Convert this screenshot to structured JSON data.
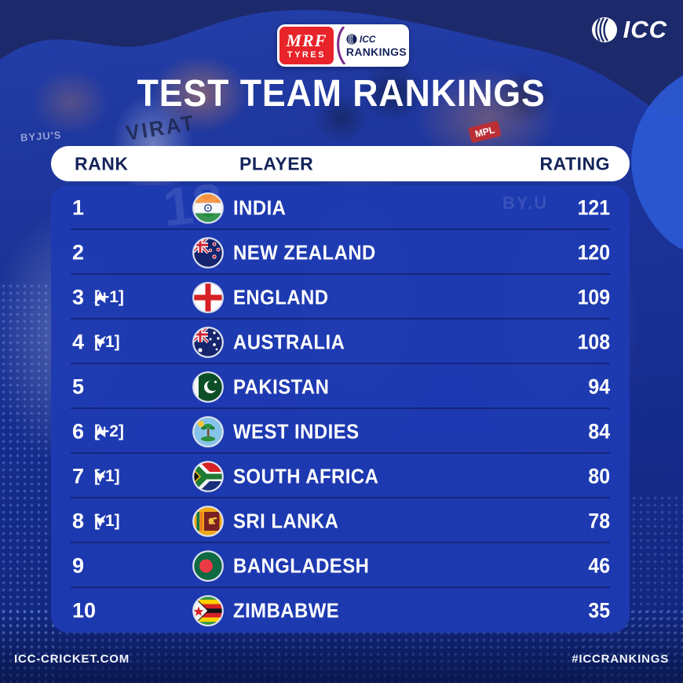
{
  "brand": {
    "icc_main_text": "ICC",
    "lockup": {
      "mrf_line1": "MRF",
      "mrf_line2": "TYRES",
      "icc_small": "ICC",
      "rankings_label": "RANKINGS"
    }
  },
  "title": "TEST TEAM RANKINGS",
  "table": {
    "headers": {
      "rank": "RANK",
      "player": "PLAYER",
      "rating": "RATING"
    },
    "rows": [
      {
        "rank": "1",
        "movement": null,
        "team": "INDIA",
        "flag": "india",
        "rating": "121"
      },
      {
        "rank": "2",
        "movement": null,
        "team": "NEW ZEALAND",
        "flag": "new-zealand",
        "rating": "120"
      },
      {
        "rank": "3",
        "movement": {
          "direction": "up",
          "label": "[+1]"
        },
        "team": "ENGLAND",
        "flag": "england",
        "rating": "109"
      },
      {
        "rank": "4",
        "movement": {
          "direction": "down",
          "label": "[-1]"
        },
        "team": "AUSTRALIA",
        "flag": "australia",
        "rating": "108"
      },
      {
        "rank": "5",
        "movement": null,
        "team": "PAKISTAN",
        "flag": "pakistan",
        "rating": "94"
      },
      {
        "rank": "6",
        "movement": {
          "direction": "up",
          "label": "[+2]"
        },
        "team": "WEST INDIES",
        "flag": "west-indies",
        "rating": "84"
      },
      {
        "rank": "7",
        "movement": {
          "direction": "down",
          "label": "[-1]"
        },
        "team": "SOUTH AFRICA",
        "flag": "south-africa",
        "rating": "80"
      },
      {
        "rank": "8",
        "movement": {
          "direction": "down",
          "label": "[-1]"
        },
        "team": "SRI LANKA",
        "flag": "sri-lanka",
        "rating": "78"
      },
      {
        "rank": "9",
        "movement": null,
        "team": "BANGLADESH",
        "flag": "bangladesh",
        "rating": "46"
      },
      {
        "rank": "10",
        "movement": null,
        "team": "ZIMBABWE",
        "flag": "zimbabwe",
        "rating": "35"
      }
    ]
  },
  "chart_data": {
    "type": "table",
    "title": "TEST TEAM RANKINGS",
    "columns": [
      "RANK",
      "PLAYER",
      "RATING"
    ],
    "rows": [
      {
        "rank": 1,
        "movement": "",
        "team": "INDIA",
        "rating": 121
      },
      {
        "rank": 2,
        "movement": "",
        "team": "NEW ZEALAND",
        "rating": 120
      },
      {
        "rank": 3,
        "movement": "+1",
        "team": "ENGLAND",
        "rating": 109
      },
      {
        "rank": 4,
        "movement": "-1",
        "team": "AUSTRALIA",
        "rating": 108
      },
      {
        "rank": 5,
        "movement": "",
        "team": "PAKISTAN",
        "rating": 94
      },
      {
        "rank": 6,
        "movement": "+2",
        "team": "WEST INDIES",
        "rating": 84
      },
      {
        "rank": 7,
        "movement": "-1",
        "team": "SOUTH AFRICA",
        "rating": 80
      },
      {
        "rank": 8,
        "movement": "-1",
        "team": "SRI LANKA",
        "rating": 78
      },
      {
        "rank": 9,
        "movement": "",
        "team": "BANGLADESH",
        "rating": 46
      },
      {
        "rank": 10,
        "movement": "",
        "team": "ZIMBABWE",
        "rating": 35
      }
    ]
  },
  "background_photo_text": {
    "jersey_name": "VIRAT",
    "jersey_number": "18",
    "sponsor_byjus": "BYJU'S",
    "sponsor_mpl": "MPL",
    "watermark": "BY.U"
  },
  "footer": {
    "left": "ICC-CRICKET.COM",
    "right": "#ICCRANKINGS"
  },
  "colors": {
    "panel_blue": "#1e3ab2",
    "navy_wave": "#1c2a6b",
    "header_text_navy": "#14235a",
    "mrf_red": "#e8232a",
    "accent_purple": "#7b2d8b",
    "bright_band_blue": "#2c5ad6"
  }
}
